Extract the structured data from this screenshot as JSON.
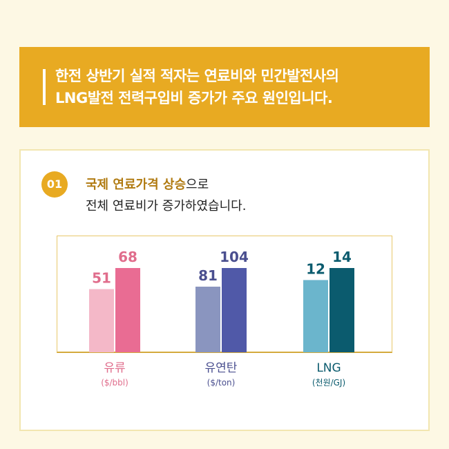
{
  "banner": {
    "line1": "한전 상반기 실적 적자는 연료비와 민간발전사의",
    "line2": "LNG발전 전력구입비 증가가 주요 원인입니다."
  },
  "section": {
    "number": "01",
    "highlight": "국제 연료가격 상승",
    "line1_rest": "으로",
    "line2": "전체 연료비가 증가하였습니다."
  },
  "colors": {
    "banner": "#e8aa22",
    "background": "#fdf8e4",
    "oil_light": "#f4b8c8",
    "oil_dark": "#e96c93",
    "coal_light": "#8a95bf",
    "coal_dark": "#5059a8",
    "lng_light": "#6bb5cc",
    "lng_dark": "#0b5b6e"
  },
  "chart_data": {
    "type": "bar",
    "categories": [
      "유류",
      "유연탄",
      "LNG"
    ],
    "units": [
      "($/bbl)",
      "($/ton)",
      "(천원/GJ)"
    ],
    "groups": [
      {
        "category": "유류",
        "unit": "($/bbl)",
        "values": [
          51,
          68
        ],
        "colors": [
          "#f4b8c8",
          "#e96c93"
        ],
        "label_color": "#e06d8c"
      },
      {
        "category": "유연탄",
        "unit": "($/ton)",
        "values": [
          81,
          104
        ],
        "colors": [
          "#8a95bf",
          "#5059a8"
        ],
        "label_color": "#4a4f8f"
      },
      {
        "category": "LNG",
        "unit": "(천원/GJ)",
        "values": [
          12,
          14
        ],
        "colors": [
          "#6bb5cc",
          "#0b5b6e"
        ],
        "label_color": "#0b5b6e"
      }
    ],
    "title": "",
    "xlabel": "",
    "ylabel": "",
    "axis_note": "each group scaled independently; no y-axis shown",
    "grid": false
  }
}
